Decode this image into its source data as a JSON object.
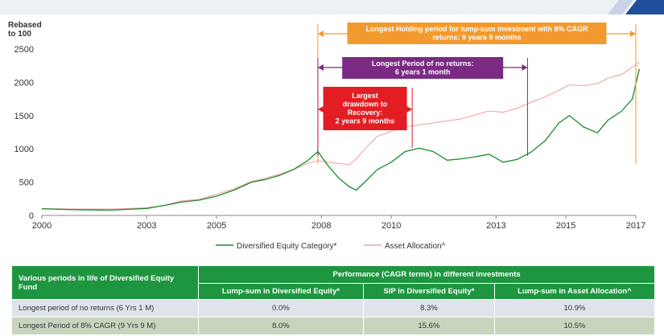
{
  "chart_data": {
    "type": "line",
    "ylabel": "Rebased to 100",
    "ylabel_lines": [
      "Rebased",
      "to 100"
    ],
    "ylim": [
      0,
      2500
    ],
    "y_ticks": [
      "0",
      "500",
      "1000",
      "1500",
      "2000",
      "2500"
    ],
    "xlim": [
      2000,
      2017
    ],
    "x_ticks": [
      "2000",
      "2003",
      "2005",
      "2008",
      "2010",
      "2013",
      "2015",
      "2017"
    ],
    "grid": false,
    "legend_position": "bottom",
    "series": [
      {
        "name": "Diversified Equity Category*",
        "color": "#1a8a2e",
        "x": [
          2000,
          2001,
          2002,
          2003,
          2003.5,
          2004,
          2004.5,
          2005,
          2005.5,
          2006,
          2006.4,
          2006.8,
          2007.2,
          2007.6,
          2007.9,
          2008.2,
          2008.5,
          2008.8,
          2009.0,
          2009.3,
          2009.6,
          2010.0,
          2010.4,
          2010.8,
          2011.2,
          2011.6,
          2012.0,
          2012.4,
          2012.8,
          2013.2,
          2013.6,
          2014.0,
          2014.4,
          2014.8,
          2015.1,
          2015.5,
          2015.9,
          2016.2,
          2016.6,
          2016.9,
          2017.1
        ],
        "values": [
          100,
          85,
          80,
          105,
          150,
          200,
          230,
          290,
          380,
          500,
          540,
          600,
          690,
          820,
          960,
          740,
          560,
          430,
          380,
          530,
          690,
          800,
          960,
          1010,
          960,
          830,
          850,
          880,
          920,
          800,
          840,
          950,
          1120,
          1390,
          1500,
          1330,
          1240,
          1430,
          1570,
          1750,
          2200
        ]
      },
      {
        "name": "Asset Allocation^",
        "color": "#f2a4a4",
        "x": [
          2000,
          2001,
          2002,
          2003,
          2003.5,
          2004,
          2004.5,
          2005,
          2005.5,
          2006,
          2006.4,
          2006.8,
          2007.2,
          2007.6,
          2007.9,
          2008.2,
          2008.5,
          2008.8,
          2009.0,
          2009.3,
          2009.6,
          2010.0,
          2010.4,
          2010.8,
          2011.2,
          2011.6,
          2012.0,
          2012.4,
          2012.8,
          2013.2,
          2013.6,
          2014.0,
          2014.4,
          2014.8,
          2015.1,
          2015.5,
          2015.9,
          2016.2,
          2016.6,
          2016.9,
          2017.1
        ],
        "values": [
          100,
          95,
          95,
          115,
          150,
          220,
          240,
          320,
          400,
          510,
          560,
          620,
          690,
          780,
          820,
          800,
          780,
          760,
          850,
          1030,
          1190,
          1260,
          1330,
          1360,
          1390,
          1420,
          1450,
          1510,
          1570,
          1550,
          1610,
          1700,
          1780,
          1880,
          1960,
          1950,
          1980,
          2060,
          2120,
          2230,
          2300
        ]
      }
    ],
    "annotations": [
      {
        "lines": [
          "Longest Holding period for lump-sum investment with 8% CAGR",
          "returns: 9 years 9 months"
        ],
        "x_start": 2007.9,
        "x_end": 2017.0,
        "color": "#f29a2e"
      },
      {
        "lines": [
          "Longest Period of no returns:",
          "6 years 1 month"
        ],
        "x_start": 2007.9,
        "x_end": 2013.9,
        "color": "#7a2a83"
      },
      {
        "lines": [
          "Largest",
          "drawdown to",
          "Recovery:",
          "2 years 9 months"
        ],
        "x_start": 2007.9,
        "x_end": 2010.6,
        "color": "#e31d23"
      }
    ]
  },
  "table": {
    "row_header": "Various periods in life of Diversified Equity Fund",
    "group_header": "Performance (CAGR terms) in different investments",
    "columns": [
      "Lump-sum in Diversified Equity*",
      "SIP in Diversified Equity*",
      "Lump-sum in Asset Allocation^"
    ],
    "rows": [
      {
        "label": "Longest period of no returns (6 Yrs 1 M)",
        "values": [
          "0.0%",
          "8.3%",
          "10.9%"
        ]
      },
      {
        "label": "Longest Period of 8% CAGR (9 Yrs 9 M)",
        "values": [
          "8.0%",
          "15.6%",
          "10.5%"
        ]
      }
    ]
  }
}
